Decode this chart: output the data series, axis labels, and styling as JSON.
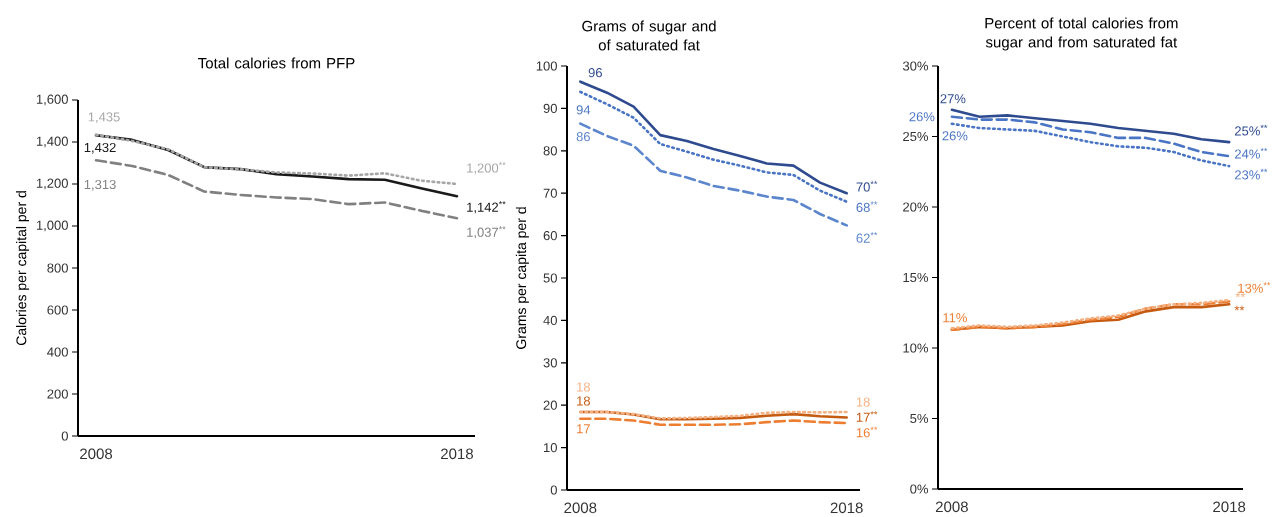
{
  "chart_data": [
    {
      "type": "line",
      "title": "Total calories from PFP",
      "ylabel": "Calories per capital per d",
      "x": [
        2008,
        2009,
        2010,
        2011,
        2012,
        2013,
        2014,
        2015,
        2016,
        2017,
        2018
      ],
      "xlim": [
        2007.5,
        2018.5
      ],
      "xticks": [
        2008,
        2018
      ],
      "ylim": [
        0,
        1600
      ],
      "yticks": [
        0,
        200,
        400,
        600,
        800,
        {
          "value": 1000,
          "label": "1,000"
        },
        {
          "value": 1200,
          "label": "1,200"
        },
        {
          "value": 1400,
          "label": "1,400"
        },
        {
          "value": 1600,
          "label": "1,600"
        }
      ],
      "series": [
        {
          "color": "#1a1a1a",
          "line_style": "solid",
          "values": [
            1432,
            1410,
            1362,
            1280,
            1271,
            1247,
            1236,
            1223,
            1220,
            1180,
            1142
          ],
          "value_labels": [
            "1,432",
            null,
            null,
            null,
            null,
            null,
            null,
            null,
            null,
            null,
            "1,142$^{**}$"
          ]
        },
        {
          "color": "#a6a6a6",
          "line_style": "dotted",
          "values": [
            1435,
            1405,
            1365,
            1280,
            1270,
            1255,
            1250,
            1240,
            1251,
            1216,
            1200
          ],
          "value_labels": [
            "1,435",
            null,
            null,
            null,
            null,
            null,
            null,
            null,
            null,
            null,
            "1,200$^{**}$"
          ]
        },
        {
          "color": "#808080",
          "line_style": "dashed",
          "values": [
            1313,
            1286,
            1243,
            1164,
            1148,
            1136,
            1128,
            1104,
            1112,
            1073,
            1037
          ],
          "value_labels": [
            "1,313",
            null,
            null,
            null,
            null,
            null,
            null,
            null,
            null,
            null,
            "1,037$^{**}$"
          ]
        }
      ]
    },
    {
      "type": "line",
      "title": "Grams of sugar and of saturated fat",
      "ylabel": "Grams per capita per d",
      "x": [
        2008,
        2009,
        2010,
        2011,
        2012,
        2013,
        2014,
        2015,
        2016,
        2017,
        2018
      ],
      "xlim": [
        2007.5,
        2018.5
      ],
      "xticks": [
        2008,
        2018
      ],
      "ylim": [
        0,
        100
      ],
      "yticks": [
        0,
        10,
        20,
        30,
        40,
        50,
        60,
        70,
        80,
        90,
        100
      ],
      "series": [
        {
          "color": "#2f4b8f",
          "line_style": "solid",
          "values": [
            96.3,
            93.7,
            90.4,
            83.7,
            82.3,
            80.4,
            78.8,
            77.0,
            76.5,
            72.5,
            70.0
          ],
          "value_labels": [
            "96",
            null,
            null,
            null,
            null,
            null,
            null,
            null,
            null,
            null,
            "70$^{**}$"
          ]
        },
        {
          "color": "#4a74c4",
          "line_style": "dotted",
          "values": [
            93.9,
            91.0,
            87.8,
            81.6,
            79.8,
            77.9,
            76.5,
            74.9,
            74.3,
            70.6,
            68.0
          ],
          "value_labels": [
            "94",
            null,
            null,
            null,
            null,
            null,
            null,
            null,
            null,
            null,
            "68$^{**}$"
          ]
        },
        {
          "color": "#5b85cc",
          "line_style": "dashed",
          "values": [
            86.4,
            83.5,
            81.2,
            75.3,
            73.7,
            71.7,
            70.6,
            69.2,
            68.4,
            65.1,
            62.4
          ],
          "value_labels": [
            "86",
            null,
            null,
            null,
            null,
            null,
            null,
            null,
            null,
            null,
            "62$^{**}$"
          ]
        },
        {
          "color": "#c55a11",
          "line_style": "solid",
          "values": [
            18.4,
            18.4,
            17.8,
            16.7,
            16.7,
            16.8,
            17.0,
            17.5,
            17.9,
            17.4,
            17.1
          ],
          "value_labels": [
            "18",
            null,
            null,
            null,
            null,
            null,
            null,
            null,
            null,
            null,
            "17$^{**}$"
          ]
        },
        {
          "color": "#f4b183",
          "line_style": "dotted",
          "values": [
            18.4,
            18.4,
            17.9,
            16.9,
            17.0,
            17.2,
            17.5,
            18.2,
            18.4,
            18.3,
            18.4
          ],
          "value_labels": [
            "18",
            null,
            null,
            null,
            null,
            null,
            null,
            null,
            null,
            null,
            "18"
          ]
        },
        {
          "color": "#ed7d31",
          "line_style": "dashed",
          "values": [
            16.8,
            16.8,
            16.4,
            15.4,
            15.4,
            15.4,
            15.5,
            16.0,
            16.4,
            16.0,
            15.8
          ],
          "value_labels": [
            "17",
            null,
            null,
            null,
            null,
            null,
            null,
            null,
            null,
            null,
            "16$^{**}$"
          ]
        }
      ]
    },
    {
      "type": "line",
      "title": "Percent of total calories from sugar and from saturated fat",
      "x": [
        2008,
        2009,
        2010,
        2011,
        2012,
        2013,
        2014,
        2015,
        2016,
        2017,
        2018
      ],
      "xlim": [
        2007.5,
        2018.5
      ],
      "xticks": [
        2008,
        2018
      ],
      "ylim": [
        0,
        30
      ],
      "yticks": [
        {
          "value": 0,
          "label": "0%"
        },
        {
          "value": 5,
          "label": "5%"
        },
        {
          "value": 10,
          "label": "10%"
        },
        {
          "value": 15,
          "label": "15%"
        },
        {
          "value": 20,
          "label": "20%"
        },
        {
          "value": 25,
          "label": "25%"
        },
        {
          "value": 30,
          "label": "30%"
        }
      ],
      "series": [
        {
          "color": "#2f4b8f",
          "line_style": "solid",
          "values": [
            26.9,
            26.4,
            26.5,
            26.3,
            26.1,
            25.9,
            25.6,
            25.4,
            25.2,
            24.8,
            24.6
          ],
          "value_labels": [
            "27%",
            null,
            null,
            null,
            null,
            null,
            null,
            null,
            null,
            null,
            "25%$^{**}$"
          ]
        },
        {
          "color": "#4a74c4",
          "line_style": "dashed",
          "values": [
            26.4,
            26.2,
            26.2,
            26.0,
            25.5,
            25.3,
            24.9,
            24.9,
            24.5,
            23.9,
            23.6
          ],
          "value_labels": [
            "26%",
            null,
            null,
            null,
            null,
            null,
            null,
            null,
            null,
            null,
            "24%$^{**}$"
          ]
        },
        {
          "color": "#4a74c4",
          "line_style": "dotted",
          "values": [
            25.9,
            25.6,
            25.5,
            25.4,
            25.0,
            24.6,
            24.3,
            24.2,
            23.9,
            23.3,
            22.9
          ],
          "value_labels": [
            "26%",
            null,
            null,
            null,
            null,
            null,
            null,
            null,
            null,
            null,
            "23%$^{**}$"
          ]
        },
        {
          "color": "#c55a11",
          "line_style": "solid",
          "values": [
            11.3,
            11.5,
            11.4,
            11.5,
            11.6,
            11.9,
            12.0,
            12.6,
            12.9,
            12.9,
            13.1
          ],
          "value_labels": [
            null,
            null,
            null,
            null,
            null,
            null,
            null,
            null,
            null,
            null,
            "**"
          ]
        },
        {
          "color": "#ed7d31",
          "line_style": "dashed",
          "values": [
            11.3,
            11.5,
            11.4,
            11.5,
            11.7,
            12.0,
            12.2,
            12.8,
            13.1,
            13.1,
            13.3
          ],
          "value_labels": [
            "11%",
            null,
            null,
            null,
            null,
            null,
            null,
            null,
            null,
            null,
            "13%$^{**}$"
          ]
        },
        {
          "color": "#f4b183",
          "line_style": "dotted",
          "values": [
            11.4,
            11.6,
            11.5,
            11.6,
            11.8,
            12.1,
            12.3,
            12.8,
            13.1,
            13.2,
            13.4
          ],
          "value_labels": [
            null,
            null,
            null,
            null,
            null,
            null,
            null,
            null,
            null,
            null,
            "**"
          ]
        }
      ]
    }
  ]
}
